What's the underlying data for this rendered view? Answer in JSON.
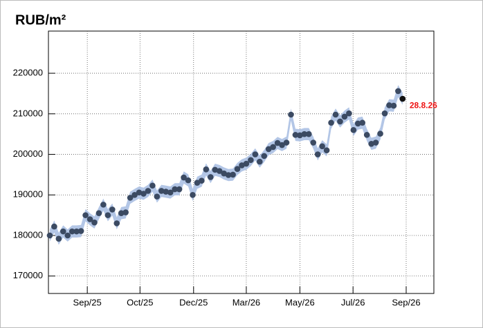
{
  "chart_data": {
    "type": "scatter",
    "title": "RUB/m²",
    "x": [
      0,
      1,
      2,
      3,
      4,
      5,
      6,
      7,
      8,
      9,
      10,
      11,
      12,
      13,
      14,
      15,
      16,
      17,
      18,
      19,
      20,
      21,
      22,
      23,
      24,
      25,
      26,
      27,
      28,
      29,
      30,
      31,
      32,
      33,
      34,
      35,
      36,
      37,
      38,
      39,
      40,
      41,
      42,
      43,
      44,
      45,
      46,
      47,
      48,
      49,
      50,
      51,
      52,
      53,
      54,
      55,
      56,
      57,
      58,
      59,
      60,
      61,
      62,
      63,
      64,
      65,
      66,
      67,
      68,
      69,
      70,
      71,
      72,
      73,
      74,
      75,
      76,
      77,
      78,
      79
    ],
    "values": [
      180000,
      182200,
      179200,
      181000,
      180000,
      181000,
      181000,
      181100,
      185000,
      184000,
      183200,
      185500,
      187600,
      185000,
      186400,
      183000,
      185500,
      185700,
      189300,
      190000,
      190600,
      190300,
      191000,
      192300,
      189600,
      191000,
      190800,
      190600,
      191400,
      191400,
      194300,
      193600,
      190000,
      193000,
      193500,
      196300,
      194400,
      196200,
      195900,
      195300,
      194900,
      195000,
      196400,
      197300,
      197700,
      198600,
      200000,
      198200,
      199600,
      201300,
      201800,
      202800,
      202300,
      202900,
      209800,
      204800,
      204700,
      205000,
      205000,
      202900,
      200000,
      202000,
      201000,
      207800,
      209800,
      208100,
      209300,
      210100,
      206000,
      207600,
      207800,
      204800,
      202600,
      202900,
      205100,
      210100,
      212100,
      212000,
      215600,
      213700
    ],
    "error": 1500,
    "color": "#3b4a62",
    "band_color": "#b3c6e6",
    "last_color": "#111111",
    "annotation": "28.8.26",
    "annotation_color": "#ee1111",
    "xlim": [
      -0.3,
      86.0
    ],
    "xticks": [
      {
        "value": 8.4,
        "label": "Sep/25"
      },
      {
        "value": 20.2,
        "label": "Oct/25"
      },
      {
        "value": 32.2,
        "label": "Dec/25"
      },
      {
        "value": 44.0,
        "label": "Mar/26"
      },
      {
        "value": 56.0,
        "label": "May/26"
      },
      {
        "value": 67.9,
        "label": "Jul/26"
      },
      {
        "value": 79.8,
        "label": "Sep/26"
      }
    ],
    "ylim": [
      165700,
      230400
    ],
    "yticks": [
      170000,
      180000,
      190000,
      200000,
      210000,
      220000
    ],
    "grid": true
  }
}
